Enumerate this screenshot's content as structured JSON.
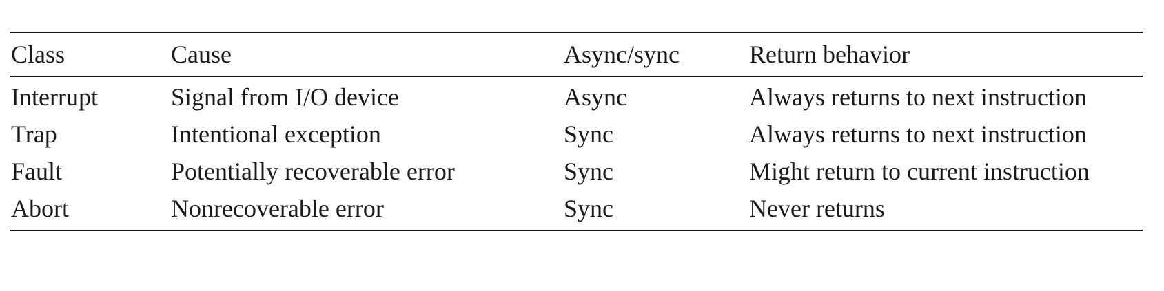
{
  "table": {
    "headers": [
      "Class",
      "Cause",
      "Async/sync",
      "Return behavior"
    ],
    "rows": [
      [
        "Interrupt",
        "Signal from I/O device",
        "Async",
        "Always returns to next instruction"
      ],
      [
        "Trap",
        "Intentional exception",
        "Sync",
        "Always returns to next instruction"
      ],
      [
        "Fault",
        "Potentially recoverable error",
        "Sync",
        "Might return to current instruction"
      ],
      [
        "Abort",
        "Nonrecoverable error",
        "Sync",
        "Never returns"
      ]
    ]
  }
}
